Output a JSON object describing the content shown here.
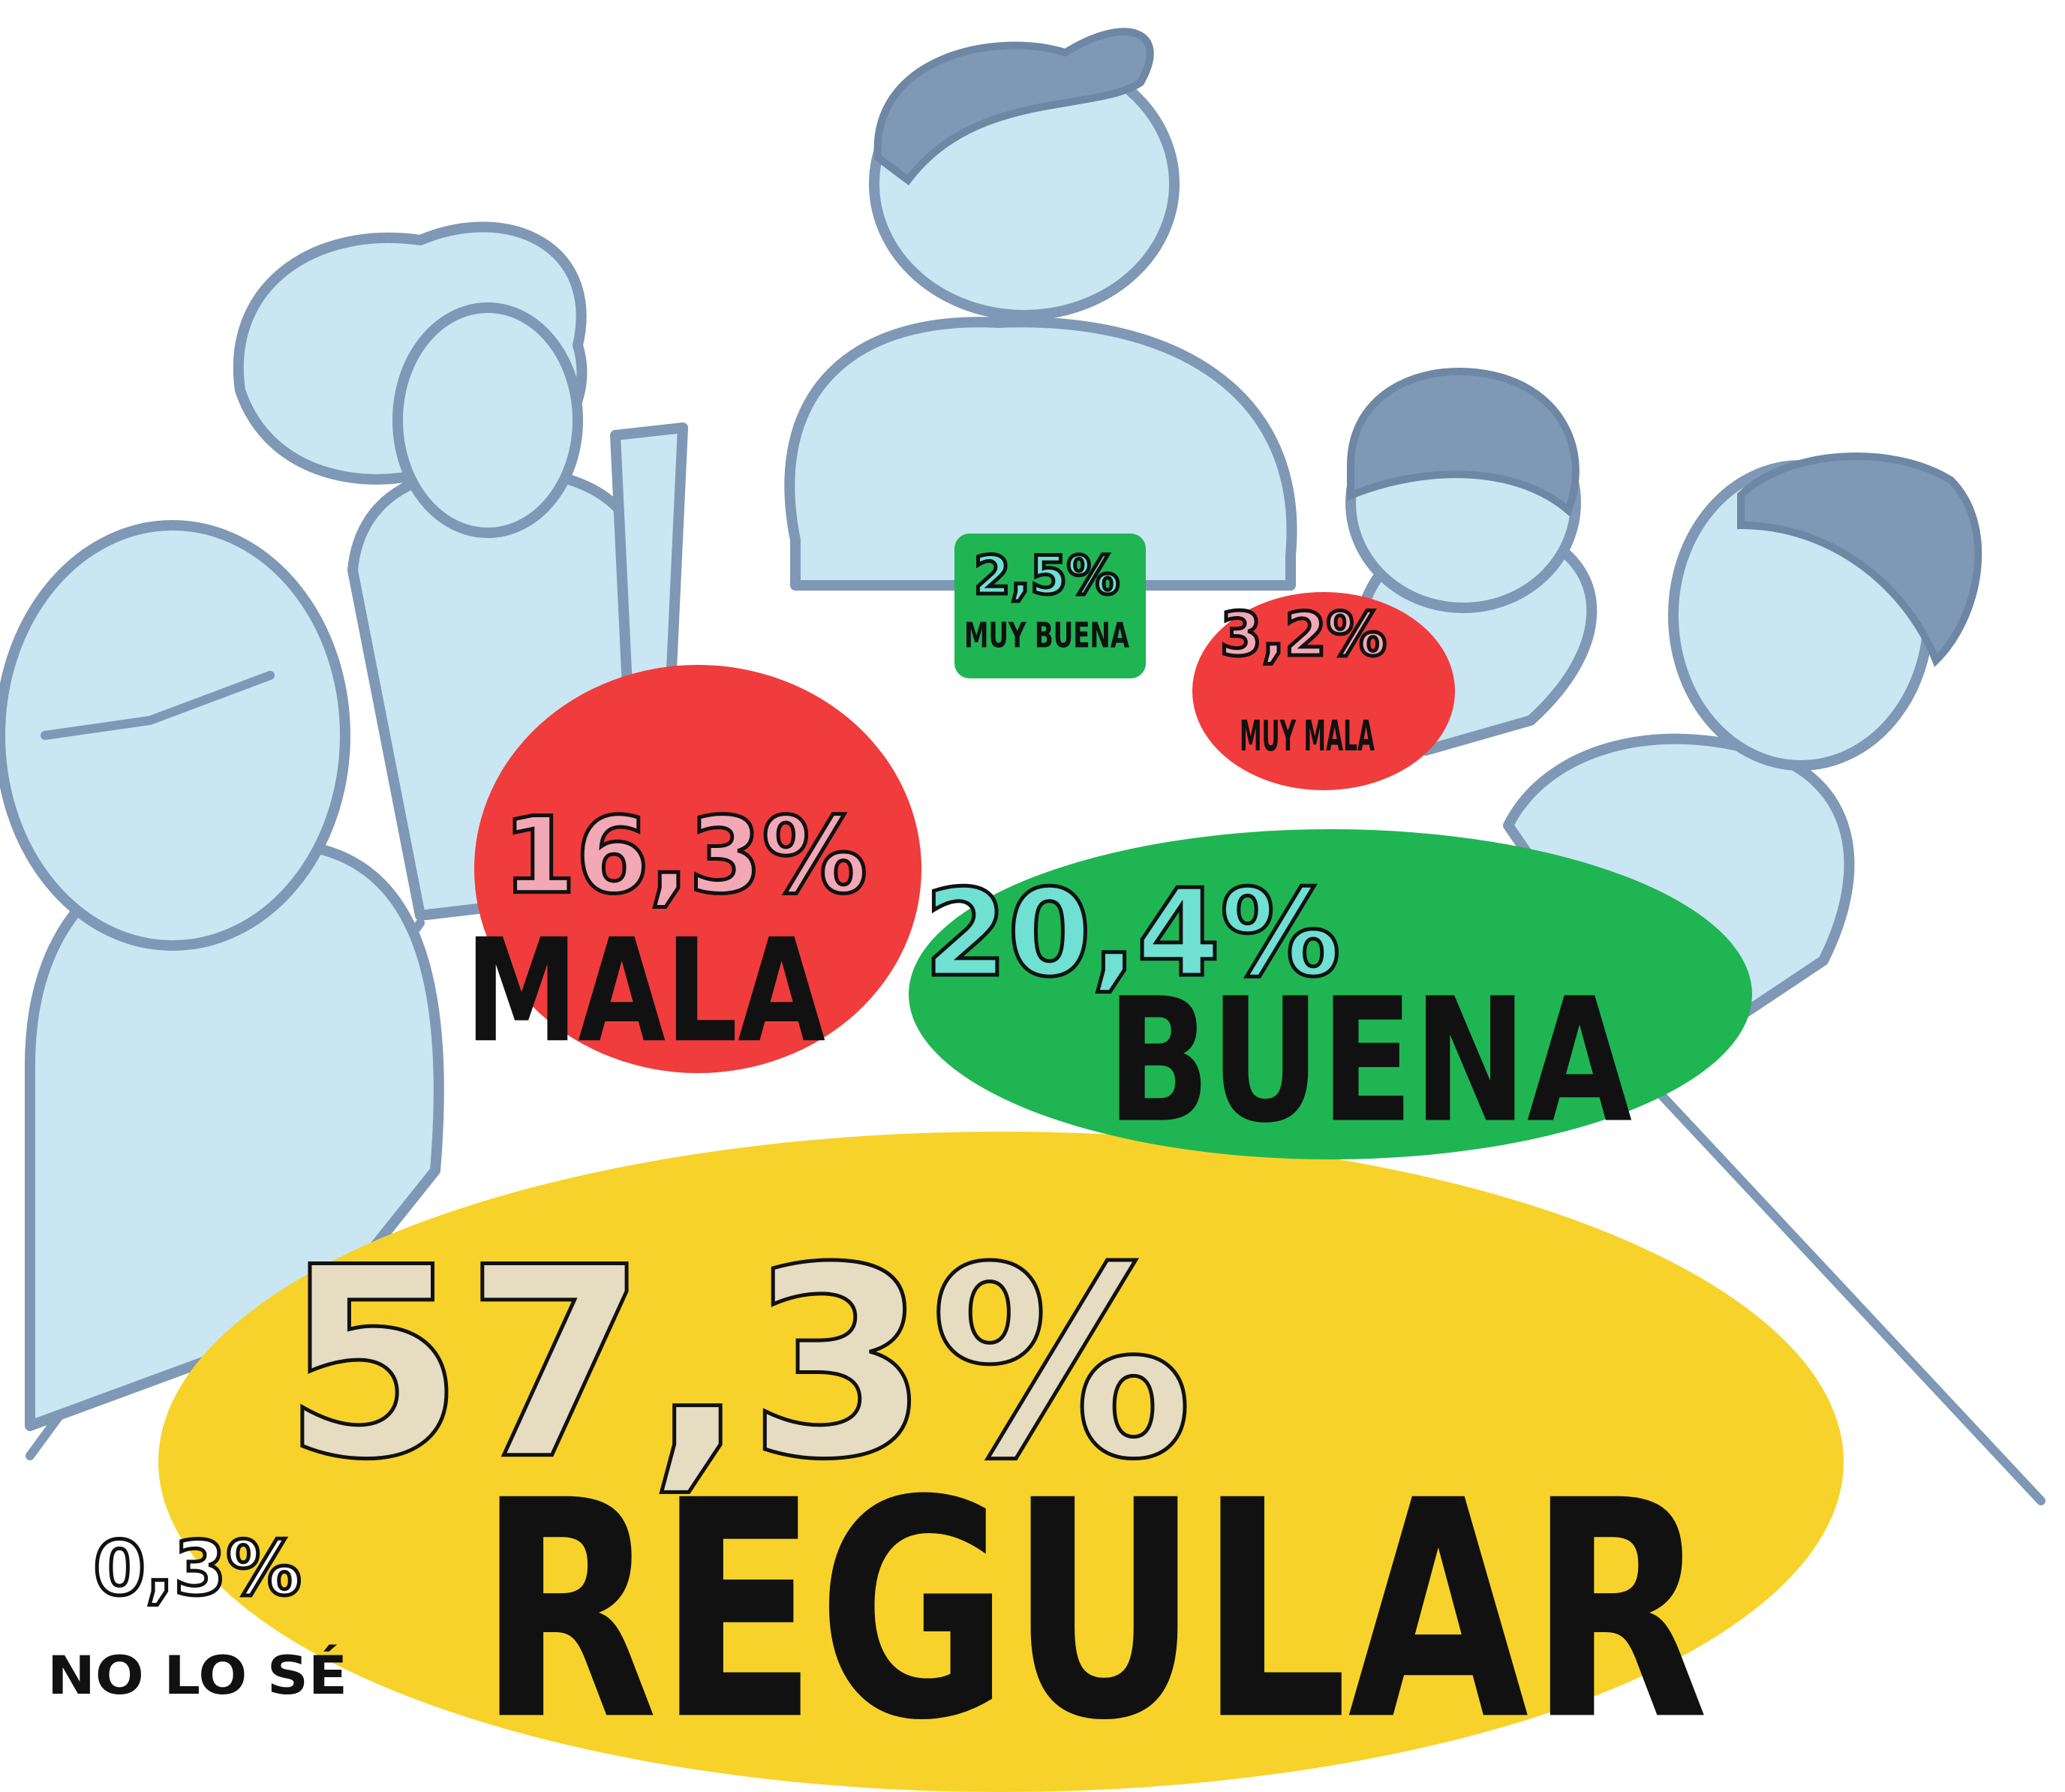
{
  "items": [
    {
      "percent": "57,3%",
      "label": "REGULAR"
    },
    {
      "percent": "20,4%",
      "label": "BUENA"
    },
    {
      "percent": "16,3%",
      "label": "MALA"
    },
    {
      "percent": "3,2%",
      "label": "MUY MALA"
    },
    {
      "percent": "2,5%",
      "label": "MUY BUENA"
    },
    {
      "percent": "0,3%",
      "label": "NO LO SÉ"
    }
  ]
}
